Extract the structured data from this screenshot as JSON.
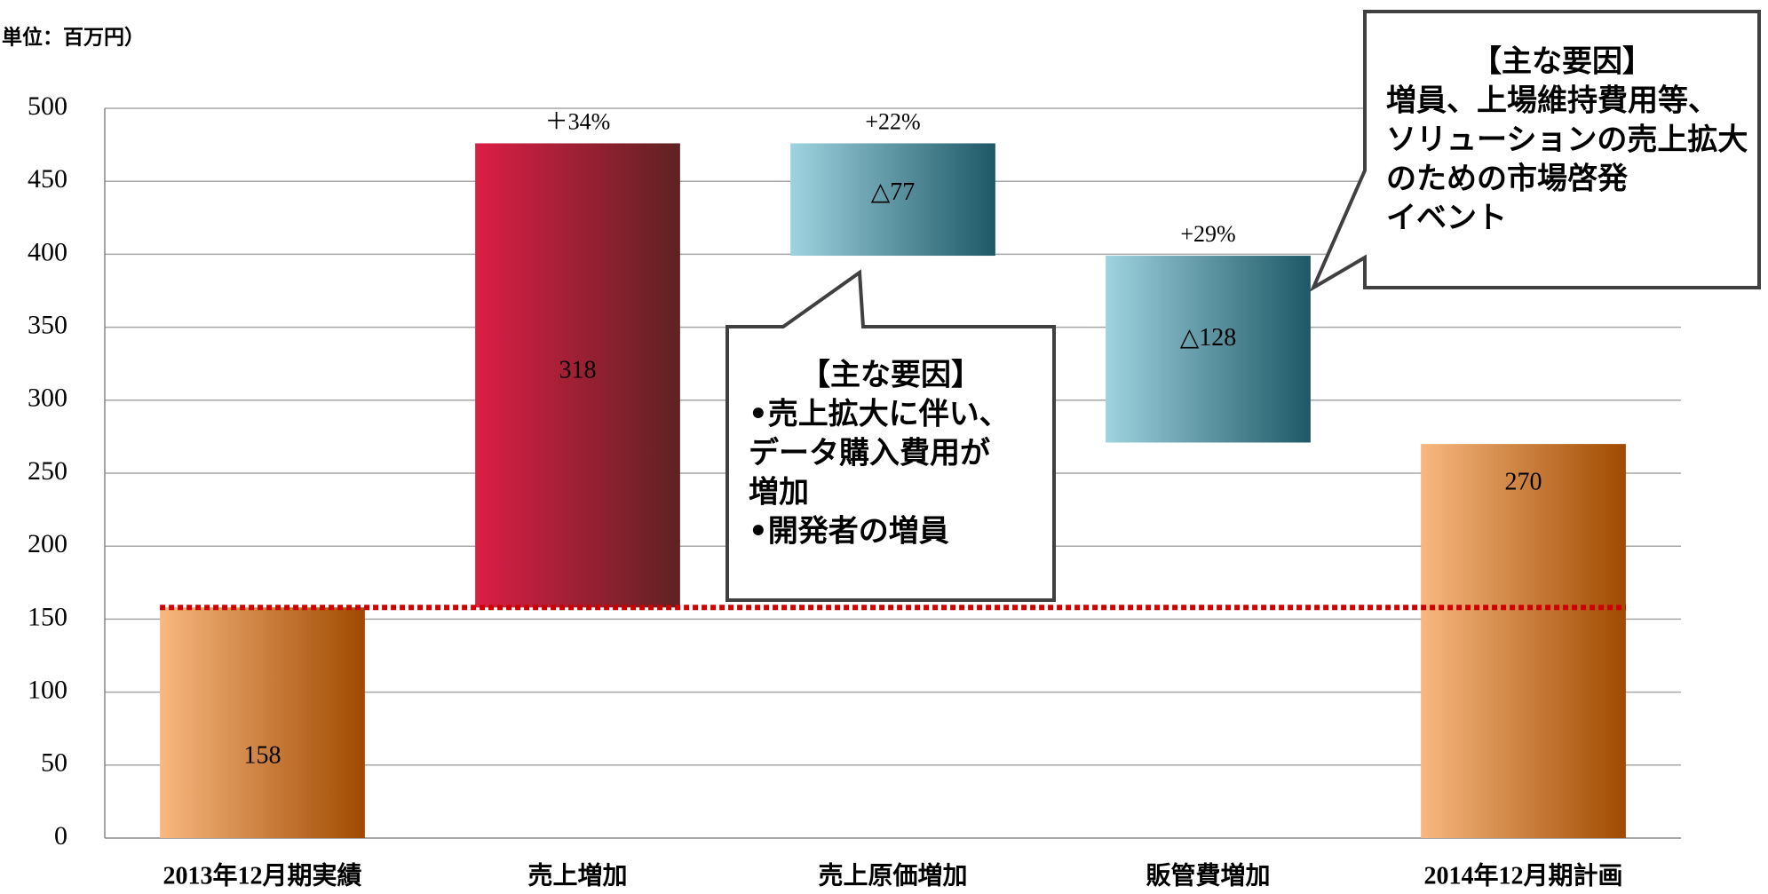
{
  "chart_data": {
    "type": "waterfall",
    "unit_label": "単位：百万円）",
    "categories": [
      "2013年12月期実績",
      "売上増加",
      "売上原価増加",
      "販管費増加",
      "2014年12月期計画"
    ],
    "values": [
      158,
      318,
      -77,
      -128,
      270
    ],
    "value_labels": [
      "158",
      "318",
      "△77",
      "△128",
      "270"
    ],
    "total_categories": [
      "2013年12月期実績",
      "2014年12月期計画"
    ],
    "colors": [
      [
        "#f8b880",
        "#a04a00"
      ],
      [
        "#dc1e46",
        "#5e2222"
      ],
      [
        "#9fd3e0",
        "#1e5866"
      ],
      [
        "#9fd3e0",
        "#1e5866"
      ],
      [
        "#f8b880",
        "#a04a00"
      ]
    ],
    "annotations": [
      {
        "category": "売上増加",
        "text": "＋34%"
      },
      {
        "category": "売上原価増加",
        "text": "+22%"
      },
      {
        "category": "販管費増加",
        "text": "+29%"
      }
    ],
    "callouts": [
      {
        "category": "売上原価増加",
        "lines": [
          "【主な要因】",
          "•売上拡大に伴い、",
          "データ購入費用が",
          "増加",
          "•開発者の増員"
        ]
      },
      {
        "category": "販管費増加",
        "lines": [
          "【主な要因】",
          "増員、上場維持費用等、",
          "ソリューションの売上拡大",
          "のための市場啓発",
          "イベント"
        ]
      }
    ],
    "ylim": [
      0,
      500
    ],
    "yticks": [
      0,
      50,
      100,
      150,
      200,
      250,
      300,
      350,
      400,
      450,
      500
    ],
    "grid": true,
    "reference_line_color": "#cc0000"
  }
}
